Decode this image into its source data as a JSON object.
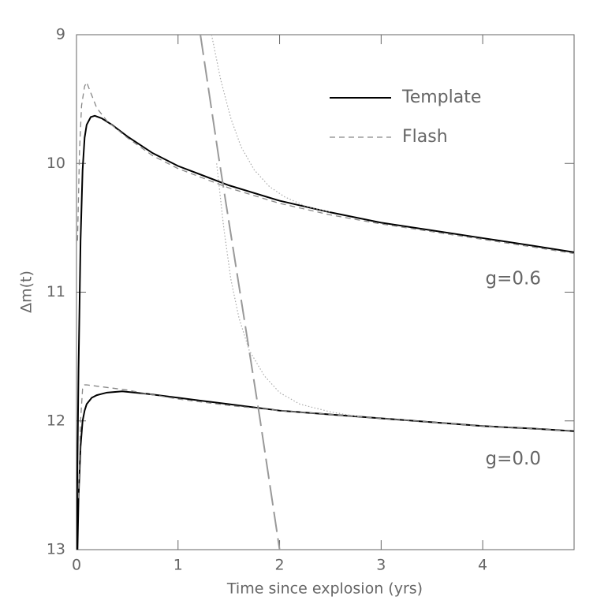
{
  "chart_data": {
    "type": "line",
    "xlabel": "Time since explosion (yrs)",
    "ylabel": "Δm(t)",
    "xlim": [
      0,
      4.9
    ],
    "ylim": [
      13,
      9
    ],
    "xticks": [
      0,
      1,
      2,
      3,
      4
    ],
    "yticks": [
      9,
      10,
      11,
      12,
      13
    ],
    "legend": "upper right",
    "series": [
      {
        "name": "Template",
        "color": "#000000",
        "style": "solid",
        "x": [
          0,
          0.02,
          0.04,
          0.06,
          0.08,
          0.1,
          0.14,
          0.18,
          0.25,
          0.35,
          0.5,
          0.75,
          1,
          1.5,
          2,
          2.5,
          3,
          3.5,
          4,
          4.5,
          4.9
        ],
        "values": [
          13,
          11.6,
          10.6,
          10.05,
          9.8,
          9.7,
          9.64,
          9.63,
          9.65,
          9.7,
          9.79,
          9.92,
          10.02,
          10.17,
          10.29,
          10.38,
          10.46,
          10.52,
          10.58,
          10.64,
          10.69
        ]
      },
      {
        "name": "Flash",
        "color": "#888888",
        "style": "dashed",
        "x": [
          0.01,
          0.03,
          0.05,
          0.08,
          0.1,
          0.14,
          0.2,
          0.3,
          0.5,
          0.75,
          1,
          1.5,
          2,
          2.5,
          3,
          3.5,
          4,
          4.5,
          4.9
        ],
        "values": [
          10.6,
          9.9,
          9.55,
          9.4,
          9.37,
          9.45,
          9.57,
          9.67,
          9.8,
          9.94,
          10.04,
          10.19,
          10.31,
          10.4,
          10.47,
          10.53,
          10.59,
          10.65,
          10.7
        ]
      },
      {
        "color": "#000000",
        "style": "solid",
        "x": [
          0.01,
          0.02,
          0.04,
          0.06,
          0.08,
          0.1,
          0.15,
          0.2,
          0.3,
          0.45,
          0.7,
          1,
          1.5,
          2,
          2.5,
          3,
          3.5,
          4,
          4.5,
          4.9
        ],
        "values": [
          13,
          12.6,
          12.2,
          12.0,
          11.92,
          11.87,
          11.82,
          11.8,
          11.78,
          11.77,
          11.79,
          11.82,
          11.87,
          11.92,
          11.95,
          11.98,
          12.01,
          12.04,
          12.06,
          12.08
        ]
      },
      {
        "color": "#888888",
        "style": "dashed",
        "x": [
          0.02,
          0.04,
          0.06,
          0.08,
          0.1,
          0.2,
          0.3,
          0.5,
          0.7,
          1,
          1.5,
          2,
          2.5,
          3,
          3.5,
          4,
          4.5,
          4.9
        ],
        "values": [
          12.6,
          12.0,
          11.75,
          11.72,
          11.72,
          11.73,
          11.74,
          11.76,
          11.79,
          11.83,
          11.88,
          11.92,
          11.95,
          11.98,
          12.01,
          12.04,
          12.06,
          12.08
        ]
      },
      {
        "color": "#999999",
        "style": "longdash",
        "x": [
          1.22,
          1.4,
          1.6,
          1.8,
          2.0
        ],
        "values": [
          9,
          9.95,
          10.95,
          11.95,
          13
        ]
      },
      {
        "color": "#aaaaaa",
        "style": "dotted",
        "x": [
          1.33,
          1.42,
          1.52,
          1.62,
          1.75,
          1.9,
          2.05,
          2.25,
          2.5
        ],
        "values": [
          9,
          9.35,
          9.65,
          9.87,
          10.05,
          10.18,
          10.26,
          10.33,
          10.38
        ]
      },
      {
        "color": "#aaaaaa",
        "style": "dotted",
        "x": [
          1.38,
          1.45,
          1.52,
          1.6,
          1.7,
          1.85,
          2.0,
          2.2,
          2.5,
          2.8
        ],
        "values": [
          10.0,
          10.5,
          10.9,
          11.2,
          11.45,
          11.65,
          11.78,
          11.87,
          11.93,
          11.97
        ]
      }
    ],
    "annotations": [
      {
        "text": "g=0.6",
        "x": 4.3,
        "y": 10.9
      },
      {
        "text": "g=0.0",
        "x": 4.3,
        "y": 12.3
      }
    ]
  }
}
